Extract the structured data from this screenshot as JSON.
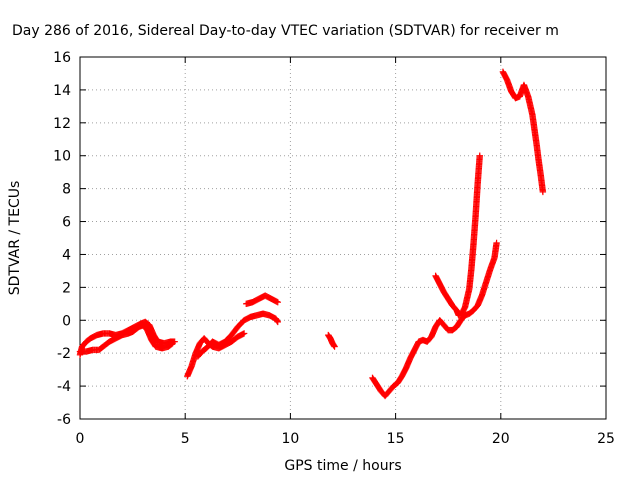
{
  "chart_data": {
    "type": "scatter",
    "title": "Day 286 of 2016, Sidereal Day-to-day VTEC variation (SDTVAR) for receiver m",
    "xlabel": "GPS time / hours",
    "ylabel": "SDTVAR / TECUs",
    "xlim": [
      0,
      25
    ],
    "ylim": [
      -6,
      16
    ],
    "xticks": [
      0,
      5,
      10,
      15,
      20,
      25
    ],
    "yticks": [
      -6,
      -4,
      -2,
      0,
      2,
      4,
      6,
      8,
      10,
      12,
      14,
      16
    ],
    "grid": true,
    "marker": "+",
    "color": "#ff0000",
    "series": [
      {
        "segments": [
          [
            [
              0.0,
              -2.1
            ],
            [
              0.1,
              -1.6
            ],
            [
              0.3,
              -1.3
            ],
            [
              0.5,
              -1.1
            ],
            [
              0.8,
              -0.9
            ],
            [
              1.1,
              -0.8
            ],
            [
              1.4,
              -0.8
            ],
            [
              1.7,
              -0.9
            ],
            [
              2.0,
              -0.8
            ],
            [
              2.3,
              -0.6
            ],
            [
              2.6,
              -0.4
            ],
            [
              2.9,
              -0.2
            ],
            [
              3.1,
              -0.1
            ],
            [
              3.3,
              -0.3
            ],
            [
              3.5,
              -0.9
            ],
            [
              3.7,
              -1.3
            ],
            [
              4.0,
              -1.4
            ],
            [
              4.3,
              -1.3
            ],
            [
              4.5,
              -1.3
            ]
          ],
          [
            [
              0.0,
              -1.9
            ],
            [
              0.3,
              -1.9
            ],
            [
              0.6,
              -1.8
            ],
            [
              0.9,
              -1.8
            ],
            [
              1.1,
              -1.6
            ],
            [
              1.4,
              -1.3
            ],
            [
              1.7,
              -1.1
            ],
            [
              2.0,
              -0.9
            ],
            [
              2.3,
              -0.8
            ],
            [
              2.5,
              -0.7
            ],
            [
              2.8,
              -0.4
            ],
            [
              3.0,
              -0.3
            ],
            [
              3.2,
              -0.6
            ],
            [
              3.4,
              -1.2
            ],
            [
              3.6,
              -1.6
            ],
            [
              3.9,
              -1.7
            ],
            [
              4.2,
              -1.6
            ],
            [
              4.4,
              -1.4
            ]
          ],
          [
            [
              5.1,
              -3.4
            ],
            [
              5.3,
              -2.8
            ],
            [
              5.5,
              -2.0
            ],
            [
              5.7,
              -1.4
            ],
            [
              5.9,
              -1.1
            ],
            [
              6.1,
              -1.4
            ],
            [
              6.3,
              -1.6
            ],
            [
              6.6,
              -1.7
            ],
            [
              6.9,
              -1.5
            ],
            [
              7.2,
              -1.3
            ],
            [
              7.5,
              -1.0
            ],
            [
              7.8,
              -0.8
            ]
          ],
          [
            [
              5.6,
              -2.2
            ],
            [
              5.8,
              -1.9
            ],
            [
              6.0,
              -1.7
            ],
            [
              6.3,
              -1.3
            ],
            [
              6.6,
              -1.5
            ],
            [
              6.9,
              -1.3
            ],
            [
              7.2,
              -0.9
            ],
            [
              7.5,
              -0.4
            ],
            [
              7.8,
              0.0
            ],
            [
              8.1,
              0.2
            ],
            [
              8.4,
              0.3
            ],
            [
              8.7,
              0.4
            ],
            [
              9.0,
              0.3
            ],
            [
              9.3,
              0.1
            ],
            [
              9.4,
              -0.1
            ]
          ],
          [
            [
              7.9,
              1.0
            ],
            [
              8.2,
              1.1
            ],
            [
              8.5,
              1.3
            ],
            [
              8.8,
              1.5
            ],
            [
              9.1,
              1.3
            ],
            [
              9.4,
              1.1
            ]
          ],
          [
            [
              11.8,
              -0.9
            ],
            [
              11.9,
              -1.1
            ],
            [
              12.0,
              -1.4
            ],
            [
              12.1,
              -1.6
            ]
          ],
          [
            [
              13.9,
              -3.5
            ],
            [
              14.1,
              -3.9
            ],
            [
              14.3,
              -4.3
            ],
            [
              14.5,
              -4.6
            ],
            [
              14.7,
              -4.3
            ],
            [
              14.9,
              -4.0
            ],
            [
              15.1,
              -3.8
            ],
            [
              15.3,
              -3.4
            ],
            [
              15.5,
              -2.9
            ],
            [
              15.7,
              -2.3
            ],
            [
              15.9,
              -1.8
            ],
            [
              16.1,
              -1.3
            ],
            [
              16.3,
              -1.2
            ],
            [
              16.5,
              -1.3
            ],
            [
              16.7,
              -1.0
            ],
            [
              16.9,
              -0.4
            ],
            [
              17.1,
              0.0
            ],
            [
              17.3,
              -0.3
            ],
            [
              17.5,
              -0.6
            ],
            [
              17.7,
              -0.6
            ],
            [
              17.9,
              -0.4
            ],
            [
              18.1,
              0.0
            ],
            [
              18.3,
              0.3
            ],
            [
              18.5,
              0.4
            ],
            [
              18.7,
              0.6
            ],
            [
              18.9,
              0.9
            ],
            [
              19.1,
              1.5
            ],
            [
              19.3,
              2.3
            ],
            [
              19.5,
              3.1
            ],
            [
              19.7,
              3.8
            ],
            [
              19.8,
              4.7
            ]
          ],
          [
            [
              16.9,
              2.7
            ],
            [
              17.1,
              2.2
            ],
            [
              17.3,
              1.7
            ],
            [
              17.5,
              1.3
            ],
            [
              17.7,
              0.9
            ],
            [
              17.9,
              0.6
            ],
            [
              18.0,
              0.3
            ],
            [
              18.1,
              0.3
            ],
            [
              18.3,
              0.8
            ],
            [
              18.5,
              1.9
            ],
            [
              18.6,
              3.1
            ],
            [
              18.7,
              4.6
            ],
            [
              18.8,
              6.3
            ],
            [
              18.9,
              8.3
            ],
            [
              19.0,
              10.0
            ]
          ],
          [
            [
              20.1,
              15.1
            ],
            [
              20.3,
              14.6
            ],
            [
              20.5,
              13.9
            ],
            [
              20.7,
              13.5
            ],
            [
              20.9,
              13.6
            ],
            [
              21.1,
              14.3
            ],
            [
              21.3,
              13.6
            ],
            [
              21.5,
              12.5
            ],
            [
              21.6,
              11.6
            ],
            [
              21.7,
              10.7
            ],
            [
              21.8,
              9.7
            ],
            [
              21.9,
              8.8
            ],
            [
              22.0,
              7.8
            ]
          ]
        ]
      }
    ]
  }
}
